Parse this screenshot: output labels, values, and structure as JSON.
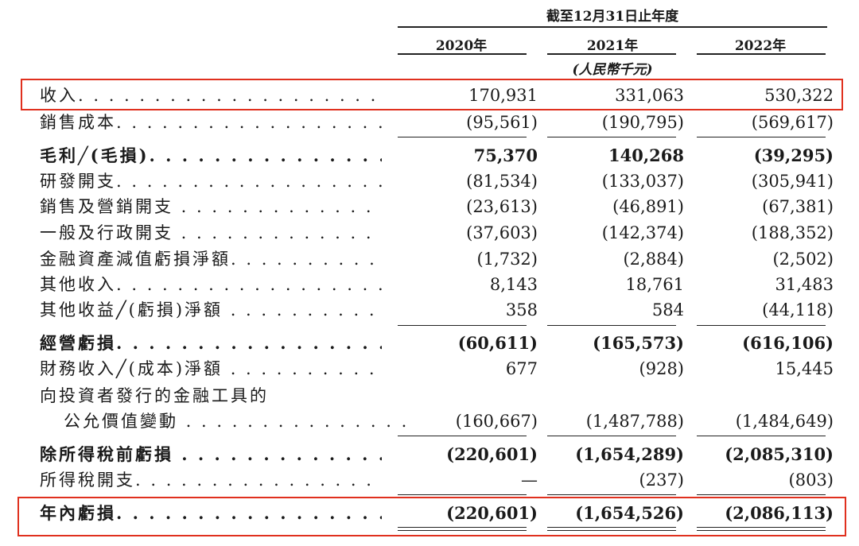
{
  "header": {
    "period": "截至12月31日止年度",
    "years": [
      "2020年",
      "2021年",
      "2022年"
    ],
    "unit": "(人民幣千元)"
  },
  "rows": [
    {
      "label": "收入",
      "values": [
        "170,931",
        "331,063",
        "530,322"
      ]
    },
    {
      "label": "銷售成本",
      "values": [
        "(95,561)",
        "(190,795)",
        "(569,617)"
      ]
    },
    {
      "label": "毛利╱(毛損)",
      "values": [
        "75,370",
        "140,268",
        "(39,295)"
      ]
    },
    {
      "label": "研發開支",
      "values": [
        "(81,534)",
        "(133,037)",
        "(305,941)"
      ]
    },
    {
      "label": "銷售及營銷開支",
      "values": [
        "(23,613)",
        "(46,891)",
        "(67,381)"
      ]
    },
    {
      "label": "一般及行政開支",
      "values": [
        "(37,603)",
        "(142,374)",
        "(188,352)"
      ]
    },
    {
      "label": "金融資產減值虧損淨額",
      "values": [
        "(1,732)",
        "(2,884)",
        "(2,502)"
      ]
    },
    {
      "label": "其他收入",
      "values": [
        "8,143",
        "18,761",
        "31,483"
      ]
    },
    {
      "label": "其他收益╱(虧損)淨額",
      "values": [
        "358",
        "584",
        "(44,118)"
      ]
    },
    {
      "label": "經營虧損",
      "values": [
        "(60,611)",
        "(165,573)",
        "(616,106)"
      ]
    },
    {
      "label": "財務收入╱(成本)淨額",
      "values": [
        "677",
        "(928)",
        "15,445"
      ]
    },
    {
      "label": "向投資者發行的金融工具的",
      "values": [
        "",
        "",
        ""
      ]
    },
    {
      "label": "公允價值變動",
      "values": [
        "(160,667)",
        "(1,487,788)",
        "(1,484,649)"
      ]
    },
    {
      "label": "除所得稅前虧損",
      "values": [
        "(220,601)",
        "(1,654,289)",
        "(2,085,310)"
      ]
    },
    {
      "label": "所得稅開支",
      "values": [
        "—",
        "(237)",
        "(803)"
      ]
    },
    {
      "label": "年內虧損",
      "values": [
        "(220,601)",
        "(1,654,526)",
        "(2,086,113)"
      ]
    }
  ]
}
